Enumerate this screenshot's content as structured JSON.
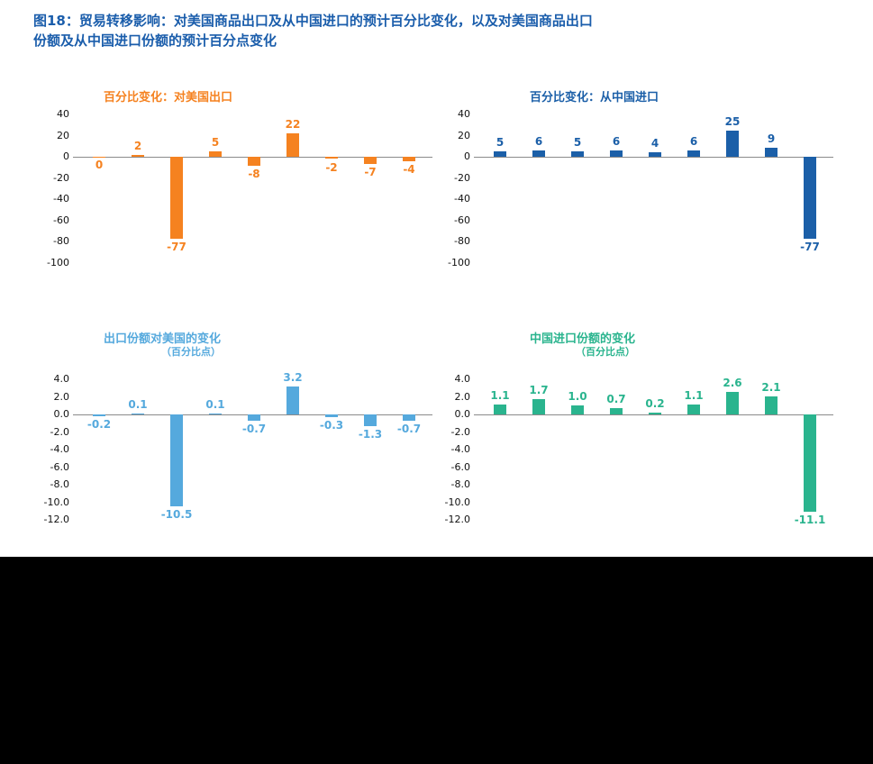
{
  "page": {
    "title_line1": "图18：贸易转移影响：对美国商品出口及从中国进口的预计百分比变化，以及对美国商品出口",
    "title_line2": "份额及从中国进口份额的预计百分点变化"
  },
  "colors": {
    "title_blue": "#1a5dab",
    "orange": "#f58220",
    "dark_blue": "#1b5fa8",
    "light_blue": "#55a9dd",
    "green": "#2ab48e",
    "axis_line": "#8a8a8a",
    "tick_text": "#111111",
    "page_bg": "#ffffff",
    "outer_bg": "#000000"
  },
  "chart_data": [
    {
      "type": "bar",
      "title": "百分比变化：对美国出口",
      "subtitle": "",
      "values": [
        0,
        2,
        -77,
        5,
        -8,
        22,
        -2,
        -7,
        -4
      ],
      "labels": [
        "0",
        "2",
        "-77",
        "5",
        "-8",
        "22",
        "-2",
        "-7",
        "-4"
      ],
      "ylim": [
        -100,
        40
      ],
      "yticks": [
        "40",
        "20",
        "0",
        "-20",
        "-40",
        "-60",
        "-80",
        "-100"
      ],
      "color": "#f58220",
      "grid": false,
      "legend": "none",
      "xlabel": "",
      "ylabel": ""
    },
    {
      "type": "bar",
      "title": "百分比变化：从中国进口",
      "subtitle": "",
      "values": [
        5,
        6,
        5,
        6,
        4,
        6,
        25,
        9,
        -77
      ],
      "labels": [
        "5",
        "6",
        "5",
        "6",
        "4",
        "6",
        "25",
        "9",
        "-77"
      ],
      "ylim": [
        -100,
        40
      ],
      "yticks": [
        "40",
        "20",
        "0",
        "-20",
        "-40",
        "-60",
        "-80",
        "-100"
      ],
      "color": "#1b5fa8",
      "grid": false,
      "legend": "none",
      "xlabel": "",
      "ylabel": ""
    },
    {
      "type": "bar",
      "title": "出口份额对美国的变化",
      "subtitle": "（百分比点）",
      "values": [
        -0.2,
        0.1,
        -10.5,
        0.1,
        -0.7,
        3.2,
        -0.3,
        -1.3,
        -0.7
      ],
      "labels": [
        "-0.2",
        "0.1",
        "-10.5",
        "0.1",
        "-0.7",
        "3.2",
        "-0.3",
        "-1.3",
        "-0.7"
      ],
      "ylim": [
        -12,
        4
      ],
      "yticks": [
        "4.0",
        "2.0",
        "0.0",
        "-2.0",
        "-4.0",
        "-6.0",
        "-8.0",
        "-10.0",
        "-12.0"
      ],
      "color": "#55a9dd",
      "grid": false,
      "legend": "none",
      "xlabel": "",
      "ylabel": ""
    },
    {
      "type": "bar",
      "title": "中国进口份额的变化",
      "subtitle": "（百分比点）",
      "values": [
        1.1,
        1.7,
        1.0,
        0.7,
        0.2,
        1.1,
        2.6,
        2.1,
        -11.1
      ],
      "labels": [
        "1.1",
        "1.7",
        "1.0",
        "0.7",
        "0.2",
        "1.1",
        "2.6",
        "2.1",
        "-11.1"
      ],
      "ylim": [
        -12,
        4
      ],
      "yticks": [
        "4.0",
        "2.0",
        "0.0",
        "-2.0",
        "-4.0",
        "-6.0",
        "-8.0",
        "-10.0",
        "-12.0"
      ],
      "color": "#2ab48e",
      "grid": false,
      "legend": "none",
      "xlabel": "",
      "ylabel": ""
    }
  ]
}
